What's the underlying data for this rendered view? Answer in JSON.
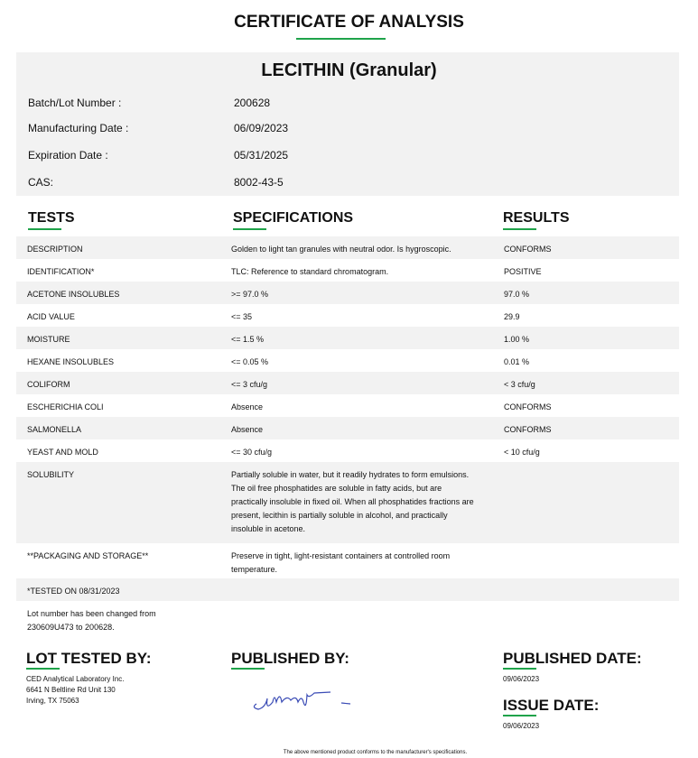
{
  "title": "CERTIFICATE OF ANALYSIS",
  "product": "LECITHIN (Granular)",
  "fields": [
    {
      "label": "Batch/Lot Number :",
      "value": "200628"
    },
    {
      "label": "Manufacturing Date :",
      "value": "06/09/2023"
    },
    {
      "label": "Expiration Date :",
      "value": "05/31/2025"
    },
    {
      "label": "CAS:",
      "value": "8002-43-5"
    }
  ],
  "headers": {
    "tests": "TESTS",
    "specifications": "SPECIFICATIONS",
    "results": "RESULTS"
  },
  "rows": [
    {
      "test": "DESCRIPTION",
      "spec": "Golden to light tan granules with neutral odor. Is hygroscopic.",
      "result": "CONFORMS"
    },
    {
      "test": "IDENTIFICATION*",
      "spec": "TLC: Reference to standard chromatogram.",
      "result": "POSITIVE"
    },
    {
      "test": "ACETONE INSOLUBLES",
      "spec": ">= 97.0 %",
      "result": "97.0 %"
    },
    {
      "test": "ACID VALUE",
      "spec": "<= 35",
      "result": "29.9"
    },
    {
      "test": "MOISTURE",
      "spec": "<= 1.5 %",
      "result": "1.00 %"
    },
    {
      "test": "HEXANE INSOLUBLES",
      "spec": "<= 0.05 %",
      "result": "0.01 %"
    },
    {
      "test": "COLIFORM",
      "spec": "<= 3 cfu/g",
      "result": "< 3 cfu/g"
    },
    {
      "test": "ESCHERICHIA COLI",
      "spec": "Absence",
      "result": "CONFORMS"
    },
    {
      "test": "SALMONELLA",
      "spec": "Absence",
      "result": "CONFORMS"
    },
    {
      "test": "YEAST AND MOLD",
      "spec": "<= 30 cfu/g",
      "result": "< 10 cfu/g"
    },
    {
      "test": "SOLUBILITY",
      "spec": "Partially soluble in water, but it readily hydrates to form emulsions. The oil free phosphatides are soluble in fatty acids, but are practically insoluble in fixed oil. When all phosphatides fractions are present, lecithin is partially soluble in alcohol, and practically insoluble in acetone.",
      "result": ""
    },
    {
      "test": "**PACKAGING AND STORAGE**",
      "spec": "Preserve in tight, light-resistant containers at controlled room temperature.",
      "result": ""
    },
    {
      "test": "*TESTED ON 08/31/2023",
      "spec": "",
      "result": ""
    },
    {
      "test": "Lot number has been changed from 230609U473 to 200628.",
      "spec": "",
      "result": ""
    }
  ],
  "footer": {
    "lot_tested_by": "LOT TESTED BY:",
    "lab_lines": [
      "CED Analytical Laboratory Inc.",
      "6641 N Beltline Rd Unit 130",
      "Irving, TX 75063"
    ],
    "published_by": "PUBLISHED BY:",
    "published_date_label": "PUBLISHED DATE:",
    "published_date": "09/06/2023",
    "issue_date_label": "ISSUE DATE:",
    "issue_date": "09/06/2023",
    "note": "The above mentioned product conforms to the manufacturer's specifications."
  },
  "colors": {
    "accent": "#1fa34a",
    "shade": "#f2f2f2",
    "signature": "#3a4bb5"
  }
}
